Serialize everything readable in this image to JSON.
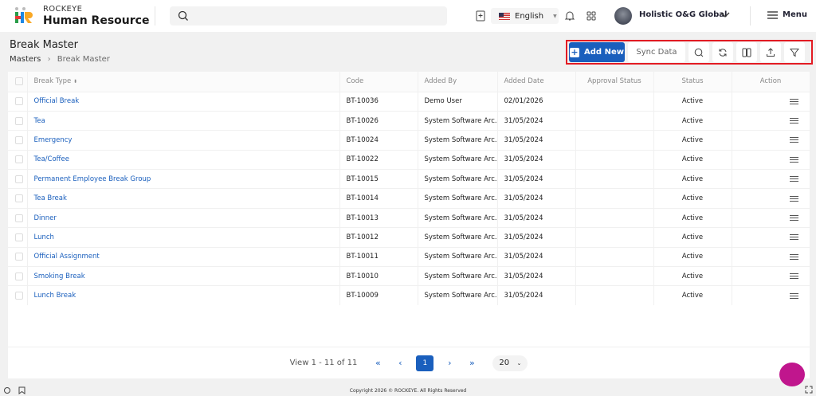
{
  "header": {
    "brand_small": "ROCKEYE",
    "brand_large": "Human Resource",
    "language": "English",
    "user_name": "Holistic O&G Global",
    "menu_label": "Menu"
  },
  "page": {
    "title": "Break Master",
    "breadcrumb": [
      "Masters",
      "Break Master"
    ]
  },
  "toolbar": {
    "add_new": "Add New",
    "sync_data": "Sync Data",
    "icons": [
      "search-icon",
      "refresh-icon",
      "columns-icon",
      "export-icon",
      "filter-icon"
    ]
  },
  "table": {
    "columns": [
      "Break Type",
      "Code",
      "Added By",
      "Added Date",
      "Approval Status",
      "Status",
      "Action"
    ],
    "rows": [
      {
        "type": "Official Break",
        "code": "BT-10036",
        "by": "Demo User",
        "date": "02/01/2026",
        "approval": "",
        "status": "Active"
      },
      {
        "type": "Tea",
        "code": "BT-10026",
        "by": "System Software Arc...",
        "date": "31/05/2024",
        "approval": "",
        "status": "Active"
      },
      {
        "type": "Emergency",
        "code": "BT-10024",
        "by": "System Software Arc...",
        "date": "31/05/2024",
        "approval": "",
        "status": "Active"
      },
      {
        "type": "Tea/Coffee",
        "code": "BT-10022",
        "by": "System Software Arc...",
        "date": "31/05/2024",
        "approval": "",
        "status": "Active"
      },
      {
        "type": "Permanent Employee Break Group",
        "code": "BT-10015",
        "by": "System Software Arc...",
        "date": "31/05/2024",
        "approval": "",
        "status": "Active"
      },
      {
        "type": "Tea Break",
        "code": "BT-10014",
        "by": "System Software Arc...",
        "date": "31/05/2024",
        "approval": "",
        "status": "Active"
      },
      {
        "type": "Dinner",
        "code": "BT-10013",
        "by": "System Software Arc...",
        "date": "31/05/2024",
        "approval": "",
        "status": "Active"
      },
      {
        "type": "Lunch",
        "code": "BT-10012",
        "by": "System Software Arc...",
        "date": "31/05/2024",
        "approval": "",
        "status": "Active"
      },
      {
        "type": "Official Assignment",
        "code": "BT-10011",
        "by": "System Software Arc...",
        "date": "31/05/2024",
        "approval": "",
        "status": "Active"
      },
      {
        "type": "Smoking Break",
        "code": "BT-10010",
        "by": "System Software Arc...",
        "date": "31/05/2024",
        "approval": "",
        "status": "Active"
      },
      {
        "type": "Lunch Break",
        "code": "BT-10009",
        "by": "System Software Arc...",
        "date": "31/05/2024",
        "approval": "",
        "status": "Active"
      }
    ]
  },
  "pagination": {
    "summary": "View 1 - 11 of 11",
    "first": "«",
    "prev": "‹",
    "current": "1",
    "next": "›",
    "last": "»",
    "page_size": "20"
  },
  "footer": {
    "copyright": "Copyright 2026 © ROCKEYE. All Rights Reserved"
  },
  "colors": {
    "accent": "#1a5fbd",
    "highlight_border": "#e31b23",
    "chat": "#c0168d"
  }
}
